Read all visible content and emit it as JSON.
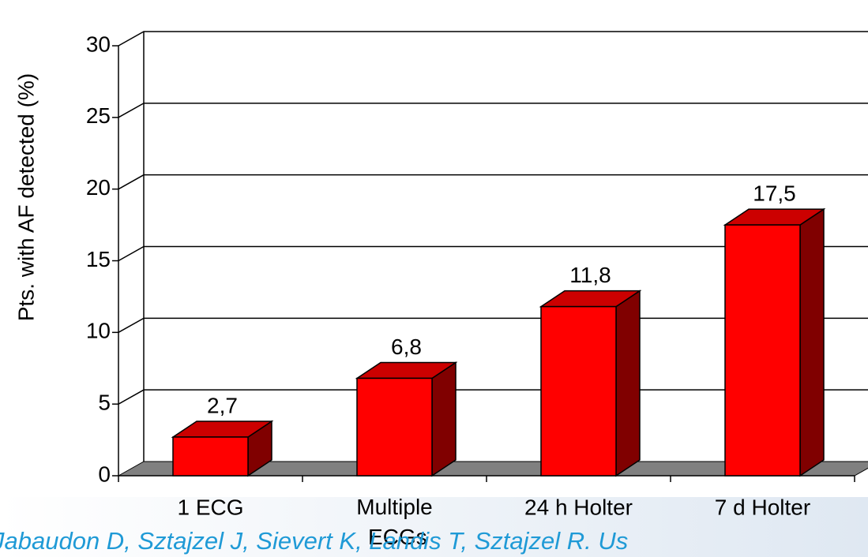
{
  "chart_data": {
    "type": "bar3d",
    "y_label": "Pts. with AF detected (%)",
    "categories": [
      "1 ECG",
      "Multiple ECGs",
      "24 h Holter",
      "7 d Holter"
    ],
    "values": [
      2.7,
      6.8,
      11.8,
      17.5
    ],
    "value_labels": [
      "2,7",
      "6,8",
      "11,8",
      "17,5"
    ],
    "color": "#ff0000",
    "ylim": [
      0,
      30
    ],
    "yticks": [
      0,
      5,
      10,
      15,
      20,
      25,
      30
    ],
    "grid": true,
    "citation": "Jabaudon D, Sztajzel J, Sievert K, Landis T, Sztajzel R. Us"
  }
}
